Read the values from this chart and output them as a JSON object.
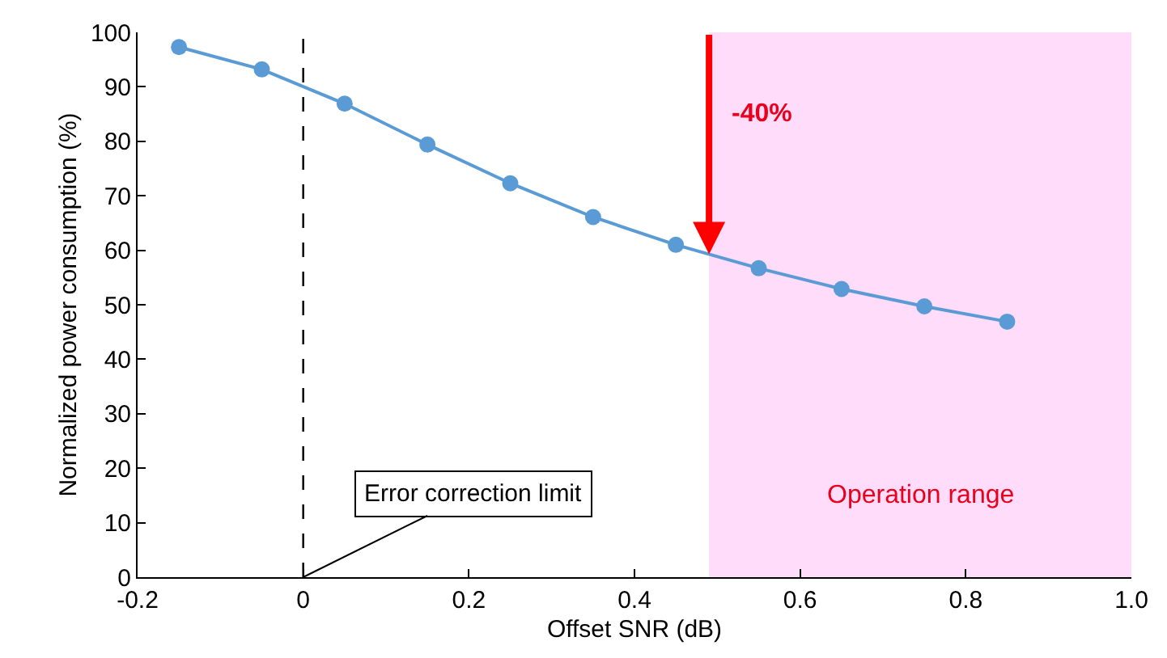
{
  "chart_data": {
    "type": "line",
    "xlabel": "Offset SNR (dB)",
    "ylabel": "Normalized power consumption (%)",
    "x": [
      -0.15,
      -0.05,
      0.05,
      0.15,
      0.25,
      0.35,
      0.45,
      0.55,
      0.65,
      0.75,
      0.85
    ],
    "series": [
      {
        "color": "#5b9bd5",
        "values": [
          97.3,
          93.2,
          86.9,
          79.4,
          72.3,
          66.1,
          61.0,
          56.7,
          52.9,
          49.7,
          46.9
        ]
      }
    ],
    "xlim": [
      -0.2,
      1.0
    ],
    "xticks": [
      -0.2,
      0,
      0.2,
      0.4,
      0.6,
      0.8,
      {
        "value": 1.0,
        "label": "1.0"
      }
    ],
    "ylim": [
      0,
      100
    ],
    "yticks": [
      0,
      10,
      20,
      30,
      40,
      50,
      60,
      70,
      80,
      90,
      100
    ],
    "grid": false,
    "marker": "circle",
    "line_style": "solid",
    "ref_lines": [
      {
        "axis": "x",
        "value": 0,
        "color": "#000000",
        "line_style": "dashed"
      }
    ],
    "bands": [
      {
        "axis": "x",
        "from": 0.49,
        "to": 1.0,
        "label": "Operation range",
        "color": "#fedcfa"
      }
    ],
    "annotations": [
      "-40%",
      {
        "text": "Error correction limit",
        "x": 0,
        "y": 0
      }
    ]
  }
}
